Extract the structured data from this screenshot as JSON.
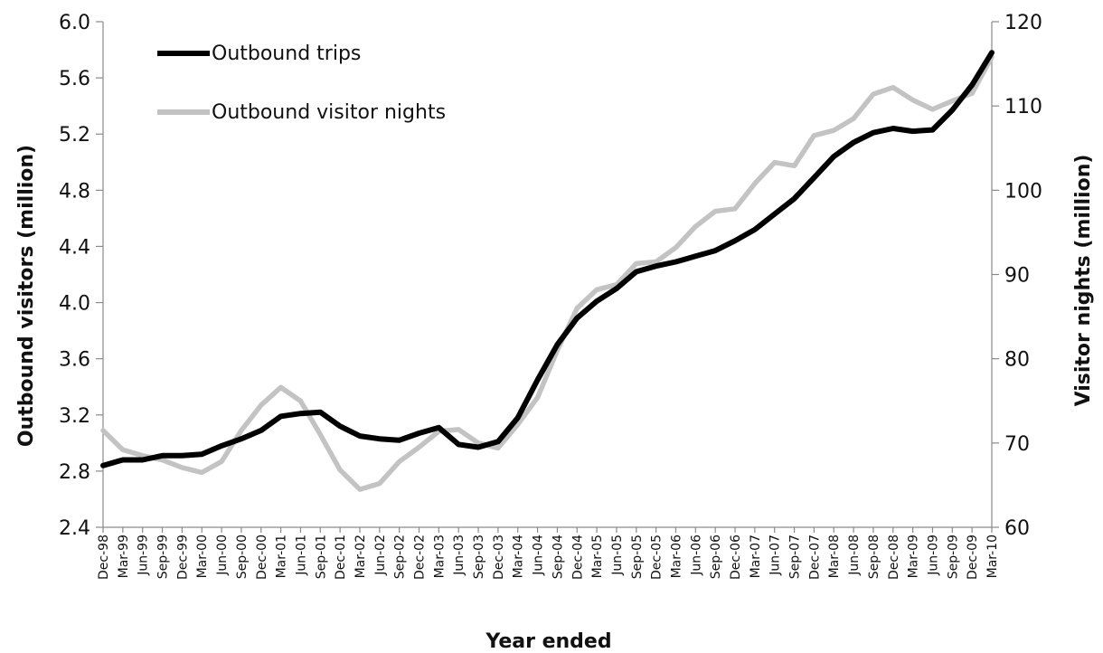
{
  "chart_data": {
    "type": "line",
    "title": "",
    "xlabel": "Year ended",
    "ylabel": "Outbound visitors (million)",
    "y2label": "Visitor nights (million)",
    "ylim": [
      2.4,
      6.0
    ],
    "y2lim": [
      60,
      120
    ],
    "y_ticks": [
      "2.4",
      "2.8",
      "3.2",
      "3.6",
      "4.0",
      "4.4",
      "4.8",
      "5.2",
      "5.6",
      "6.0"
    ],
    "y2_ticks": [
      "60",
      "70",
      "80",
      "90",
      "100",
      "110",
      "120"
    ],
    "grid": false,
    "legend_position": "top-left",
    "categories": [
      "Dec-98",
      "Mar-99",
      "Jun-99",
      "Sep-99",
      "Dec-99",
      "Mar-00",
      "Jun-00",
      "Sep-00",
      "Dec-00",
      "Mar-01",
      "Jun-01",
      "Sep-01",
      "Dec-01",
      "Mar-02",
      "Jun-02",
      "Sep-02",
      "Dec-02",
      "Mar-03",
      "Jun-03",
      "Sep-03",
      "Dec-03",
      "Mar-04",
      "Jun-04",
      "Sep-04",
      "Dec-04",
      "Mar-05",
      "Jun-05",
      "Sep-05",
      "Dec-05",
      "Mar-06",
      "Jun-06",
      "Sep-06",
      "Dec-06",
      "Mar-07",
      "Jun-07",
      "Sep-07",
      "Dec-07",
      "Mar-08",
      "Jun-08",
      "Sep-08",
      "Dec-08",
      "Mar-09",
      "Jun-09",
      "Sep-09",
      "Dec-09",
      "Mar-10"
    ],
    "series": [
      {
        "name": "Outbound trips",
        "axis": "left",
        "color": "#000000",
        "values": [
          2.84,
          2.88,
          2.88,
          2.91,
          2.91,
          2.92,
          2.98,
          3.03,
          3.09,
          3.19,
          3.21,
          3.22,
          3.12,
          3.05,
          3.03,
          3.02,
          3.07,
          3.11,
          2.99,
          2.97,
          3.01,
          3.18,
          3.45,
          3.7,
          3.89,
          4.01,
          4.1,
          4.22,
          4.26,
          4.29,
          4.33,
          4.37,
          4.44,
          4.52,
          4.63,
          4.74,
          4.89,
          5.04,
          5.14,
          5.21,
          5.24,
          5.22,
          5.23,
          5.37,
          5.55,
          5.78
        ]
      },
      {
        "name": "Outbound visitor nights",
        "axis": "right",
        "color": "#c3c3c3",
        "values": [
          71.5,
          69.2,
          68.5,
          68.0,
          67.1,
          66.5,
          67.8,
          71.5,
          74.5,
          76.6,
          75.0,
          71.0,
          66.8,
          64.5,
          65.2,
          67.8,
          69.5,
          71.4,
          71.6,
          70.0,
          69.4,
          72.2,
          75.4,
          81.0,
          86.0,
          88.2,
          88.8,
          91.3,
          91.5,
          93.2,
          95.7,
          97.5,
          97.8,
          100.8,
          103.3,
          102.9,
          106.5,
          107.1,
          108.5,
          111.4,
          112.2,
          110.7,
          109.6,
          110.6,
          111.5,
          115.8
        ]
      }
    ]
  }
}
